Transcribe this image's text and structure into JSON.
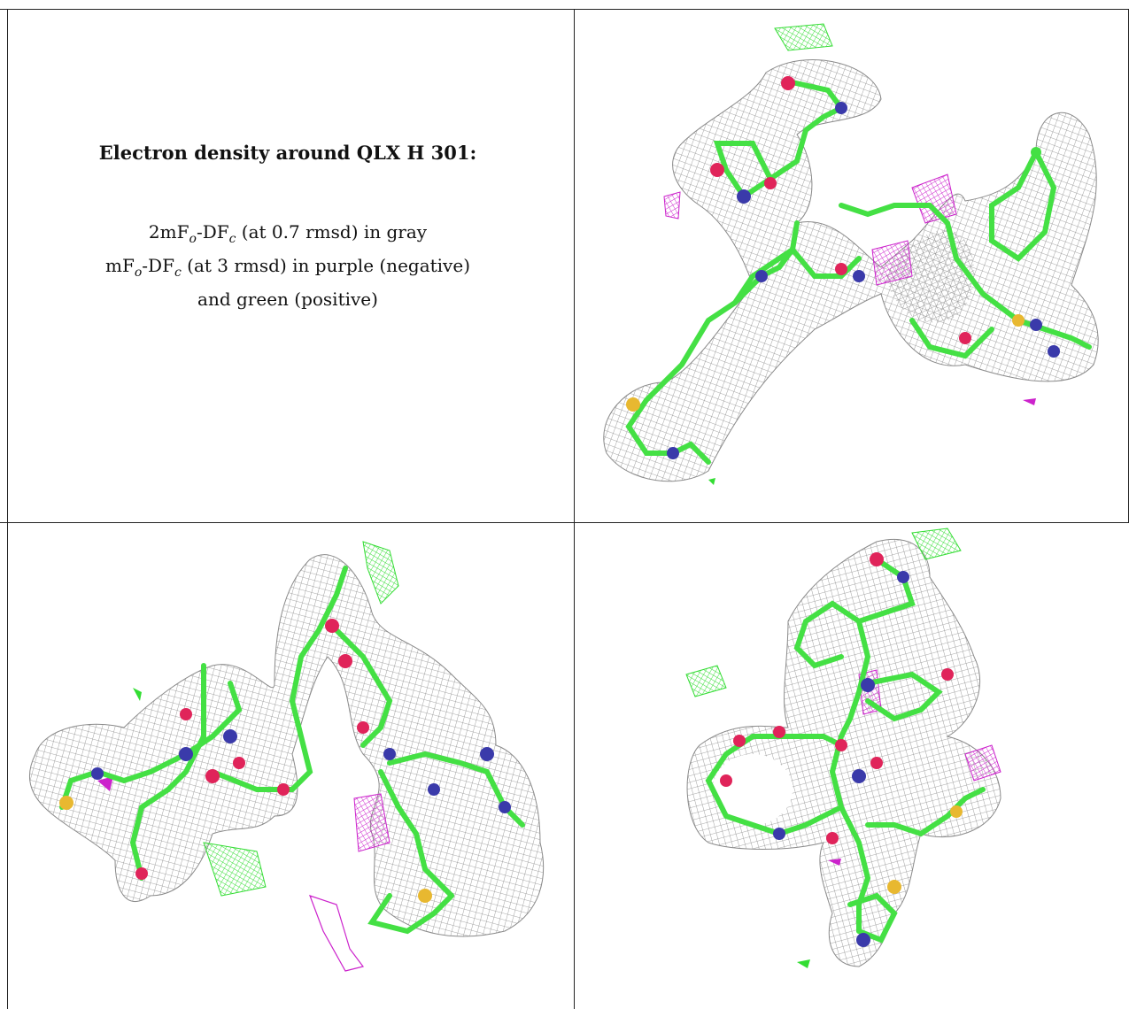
{
  "caption": {
    "title": "Electron density around QLX H 301:",
    "lines": [
      {
        "pre": "2mF",
        "sub1": "o",
        "mid": "-DF",
        "sub2": "c",
        "post": " (at 0.7 rmsd) in gray"
      },
      {
        "pre": "mF",
        "sub1": "o",
        "mid": "-DF",
        "sub2": "c",
        "post": " (at 3 rmsd) in purple (negative)"
      },
      {
        "pre": "",
        "sub1": "",
        "mid": "",
        "sub2": "",
        "post": "and green (positive)"
      }
    ]
  },
  "colors": {
    "density_2fo": "#8a8a8a",
    "difference_negative": "#cc22cc",
    "difference_positive": "#33dd33",
    "carbon_stick": "#44e044",
    "oxygen": "#e0245a",
    "nitrogen": "#3a3aaa",
    "sulfur": "#e8b830"
  },
  "views": [
    {
      "name": "view-top-right"
    },
    {
      "name": "view-bottom-left"
    },
    {
      "name": "view-bottom-right"
    }
  ]
}
